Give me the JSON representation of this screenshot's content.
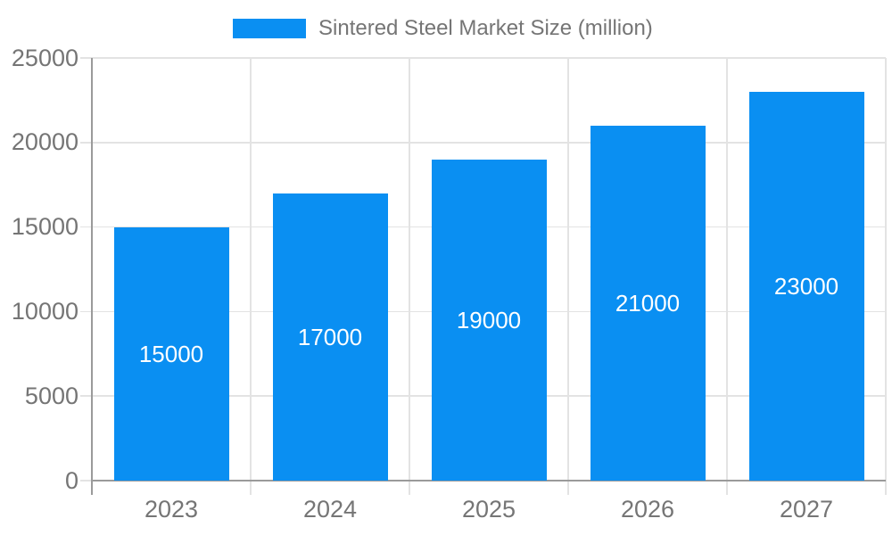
{
  "chart_data": {
    "type": "bar",
    "legend": [
      "Sintered Steel Market Size (million)"
    ],
    "legend_position": "top-center",
    "categories": [
      "2023",
      "2024",
      "2025",
      "2026",
      "2027"
    ],
    "values": [
      15000,
      17000,
      19000,
      21000,
      23000
    ],
    "value_labels": [
      "15000",
      "17000",
      "19000",
      "21000",
      "23000"
    ],
    "xlabel": "",
    "ylabel": "",
    "ylim": [
      0,
      25000
    ],
    "yticks": [
      0,
      5000,
      10000,
      15000,
      20000,
      25000
    ],
    "ytick_labels": [
      "0",
      "5000",
      "10000",
      "15000",
      "20000",
      "25000"
    ],
    "grid": true,
    "colors": {
      "bar": "#0a8ff2",
      "grid": "#e3e3e3",
      "axis": "#9a9a9a",
      "tick_text": "#757575",
      "value_text": "#ffffff",
      "background": "#ffffff"
    }
  }
}
